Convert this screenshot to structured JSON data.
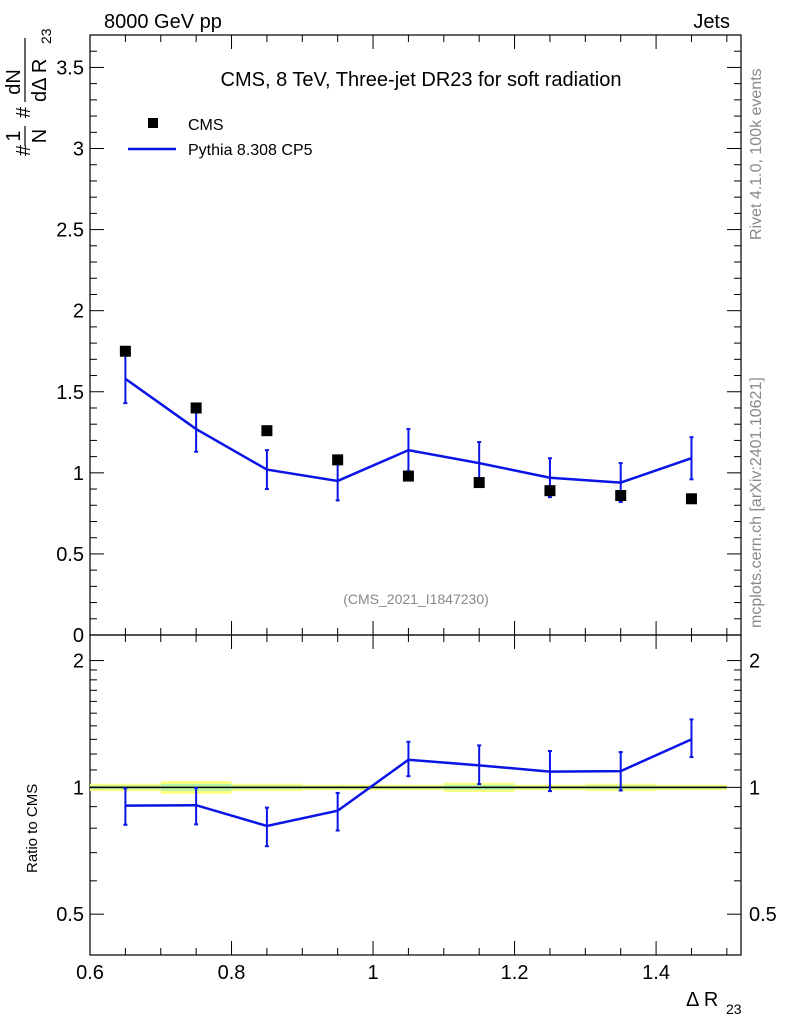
{
  "header": {
    "left": "8000 GeV pp",
    "right": "Jets"
  },
  "side_label": {
    "top": "Rivet 4.1.0,  100k events",
    "bottom": "mcplots.cern.ch [arXiv:2401.10621]"
  },
  "colors": {
    "data": "#000000",
    "mc": "#0a14e6",
    "band_outer": "#ffff80",
    "band_inner": "#b8f5a0"
  },
  "chart_data": [
    {
      "type": "scatter",
      "panel": "main",
      "title": "CMS, 8 TeV, Three-jet DR23 for soft radiation",
      "watermark": "(CMS_2021_I1847230)",
      "ylabel_parts": {
        "frac_num": "1",
        "frac_den": "N",
        "hash": "#",
        "d_num": "dN",
        "d_den": "dΔ R",
        "d_sub": "23"
      },
      "xlim": [
        0.6,
        1.52
      ],
      "ylim": [
        0,
        3.7
      ],
      "yticks": [
        0,
        0.5,
        1,
        1.5,
        2,
        2.5,
        3,
        3.5
      ],
      "ytick_labels": [
        "0",
        "0.5",
        "1",
        "1.5",
        "2",
        "2.5",
        "3",
        "3.5"
      ],
      "legend": [
        "CMS",
        "Pythia 8.308 CP5"
      ],
      "legend_position": "top-left",
      "series": [
        {
          "name": "CMS",
          "kind": "markers",
          "x": [
            0.65,
            0.75,
            0.85,
            0.95,
            1.05,
            1.15,
            1.25,
            1.35,
            1.45
          ],
          "y": [
            1.75,
            1.4,
            1.26,
            1.08,
            0.98,
            0.94,
            0.89,
            0.86,
            0.84
          ]
        },
        {
          "name": "Pythia 8.308 CP5",
          "kind": "line",
          "x": [
            0.65,
            0.75,
            0.85,
            0.95,
            1.05,
            1.15,
            1.25,
            1.35,
            1.45
          ],
          "y": [
            1.58,
            1.27,
            1.02,
            0.95,
            1.14,
            1.06,
            0.97,
            0.94,
            1.09
          ],
          "err": [
            0.15,
            0.14,
            0.12,
            0.12,
            0.13,
            0.13,
            0.12,
            0.12,
            0.13
          ]
        }
      ]
    },
    {
      "type": "line",
      "panel": "ratio",
      "ylabel": "Ratio to CMS",
      "xlabel_main": "Δ R",
      "xlabel_sub": "23",
      "log_y": true,
      "xlim": [
        0.6,
        1.52
      ],
      "ylim": [
        0.4,
        2.3
      ],
      "xticks": [
        0.6,
        0.8,
        1.0,
        1.2,
        1.4
      ],
      "xtick_labels": [
        "0.6",
        "0.8",
        "1",
        "1.2",
        "1.4"
      ],
      "yticks": [
        0.5,
        1,
        2
      ],
      "ytick_labels": [
        "0.5",
        "1",
        "2"
      ],
      "band": {
        "x_edges": [
          0.6,
          0.7,
          0.8,
          0.9,
          1.0,
          1.1,
          1.2,
          1.3,
          1.4,
          1.5
        ],
        "half_width": [
          0.02,
          0.035,
          0.02,
          0.015,
          0.015,
          0.025,
          0.015,
          0.02,
          0.015
        ]
      },
      "series": [
        {
          "name": "Pythia 8.308 CP5 / CMS",
          "x": [
            0.65,
            0.75,
            0.85,
            0.95,
            1.05,
            1.15,
            1.25,
            1.35,
            1.45
          ],
          "y": [
            0.905,
            0.907,
            0.81,
            0.88,
            1.163,
            1.128,
            1.09,
            1.093,
            1.3
          ],
          "err_low": [
            0.09,
            0.09,
            0.085,
            0.09,
            0.1,
            0.11,
            0.11,
            0.11,
            0.12
          ],
          "err_high": [
            0.09,
            0.09,
            0.085,
            0.09,
            0.12,
            0.13,
            0.13,
            0.12,
            0.15
          ]
        }
      ]
    }
  ]
}
